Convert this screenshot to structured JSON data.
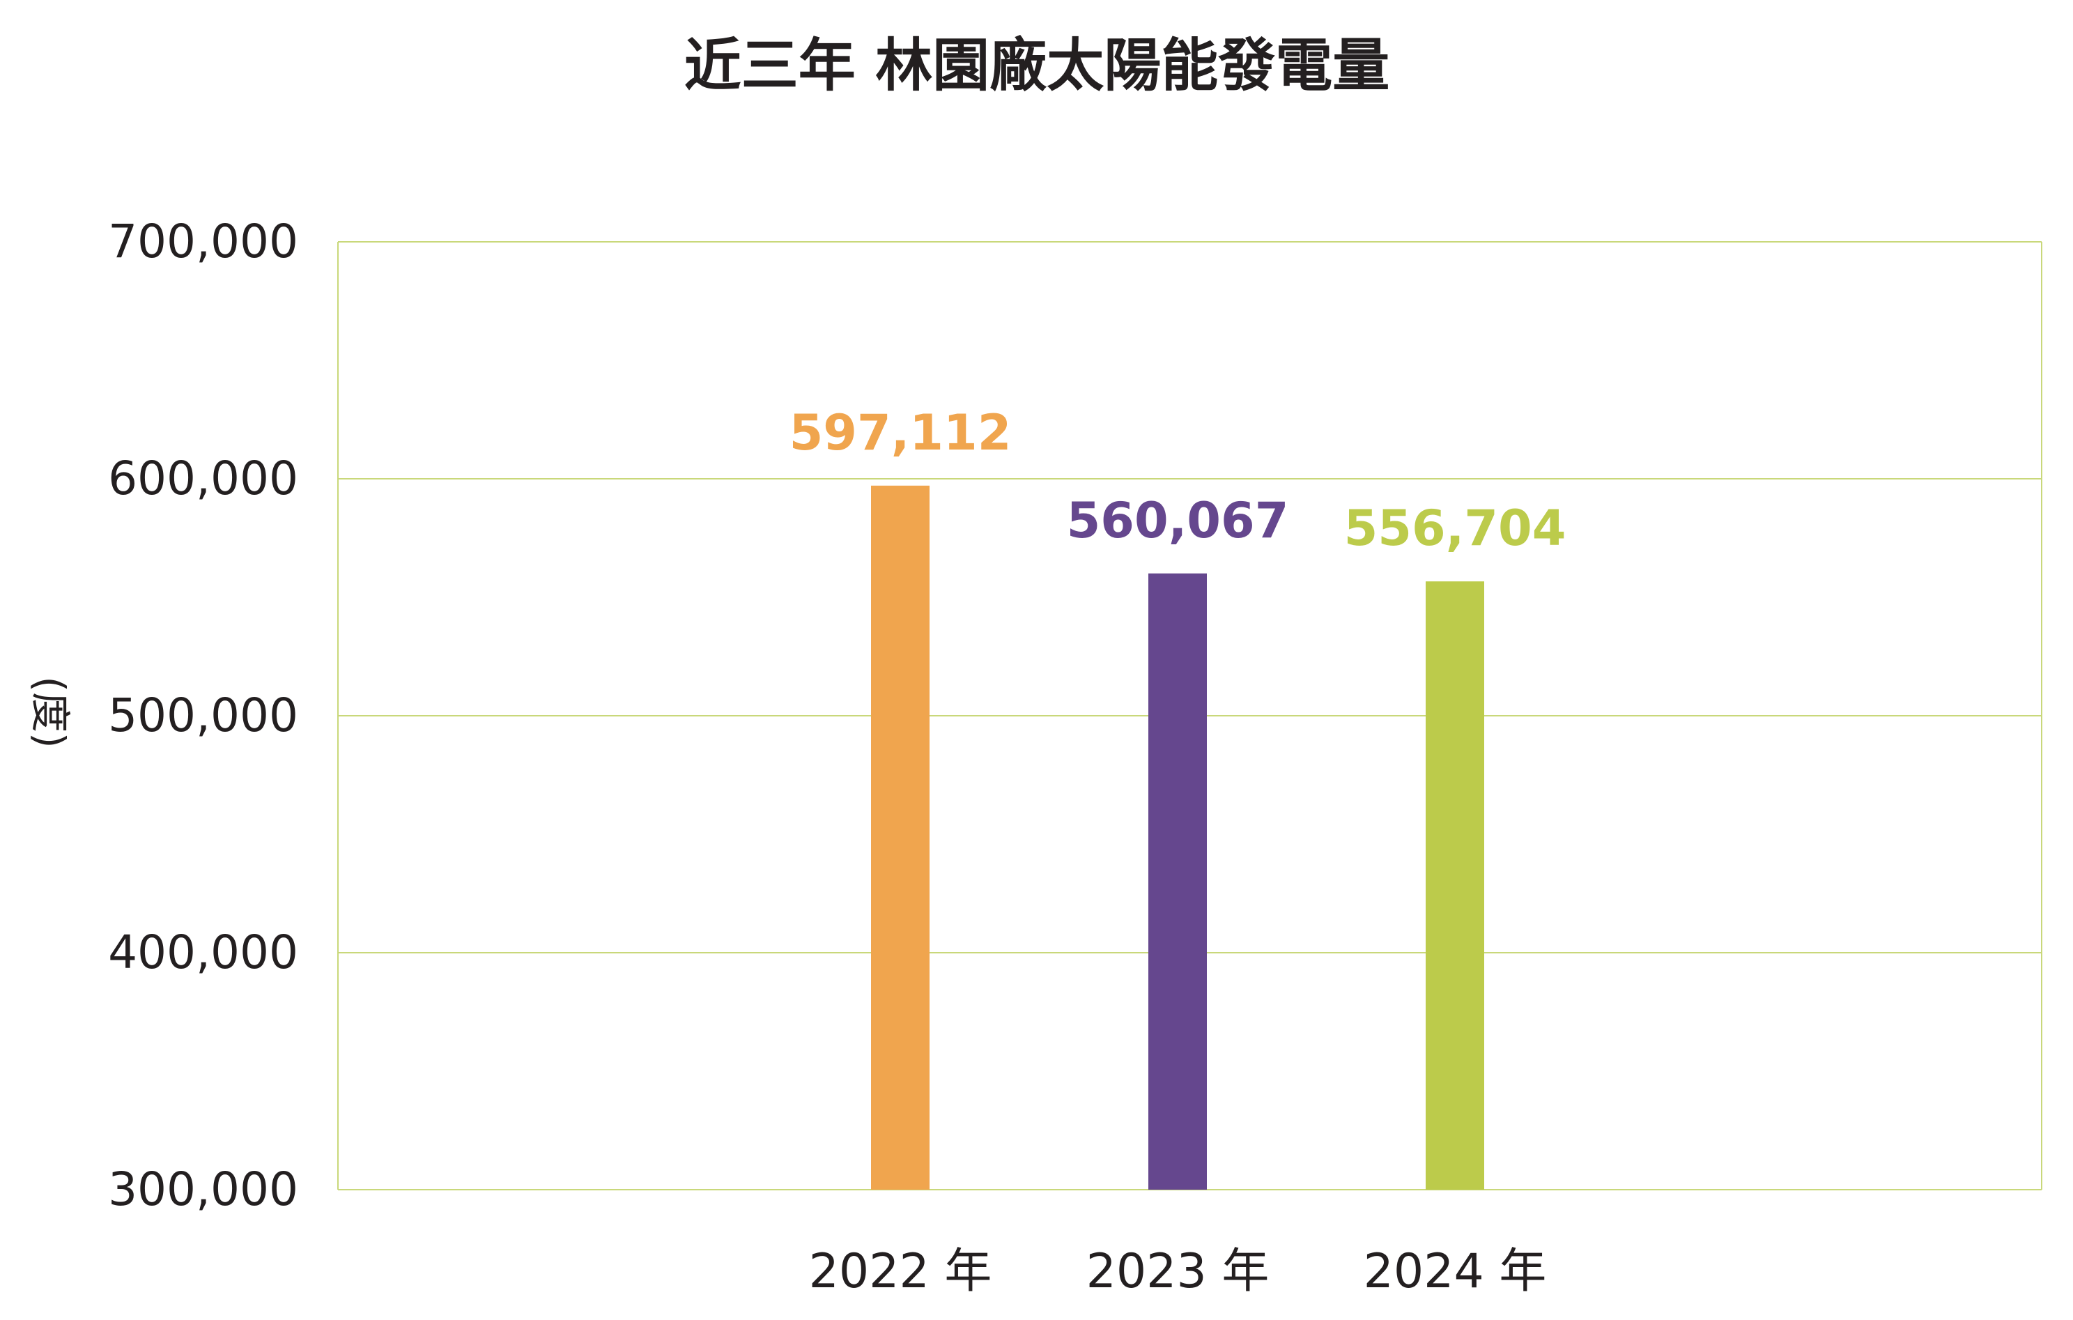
{
  "chart_data": {
    "type": "bar",
    "title": "近三年 林園廠太陽能發電量",
    "ylabel": "(度)",
    "xlabel": "",
    "categories": [
      "2022 年",
      "2023 年",
      "2024 年"
    ],
    "values": [
      597112,
      560067,
      556704
    ],
    "value_labels": [
      "597,112",
      "560,067",
      "556,704"
    ],
    "bar_colors": [
      "#F0A54E",
      "#65478E",
      "#BCCB4B"
    ],
    "ylim": [
      300000,
      700000
    ],
    "yticks": [
      300000,
      400000,
      500000,
      600000,
      700000
    ],
    "ytick_labels": [
      "300,000",
      "400,000",
      "500,000",
      "600,000",
      "700,000"
    ],
    "grid": true,
    "legend": "none"
  },
  "colors": {
    "grid_line": "#C9D87A",
    "text": "#231F20",
    "background": "#FFFFFF"
  }
}
